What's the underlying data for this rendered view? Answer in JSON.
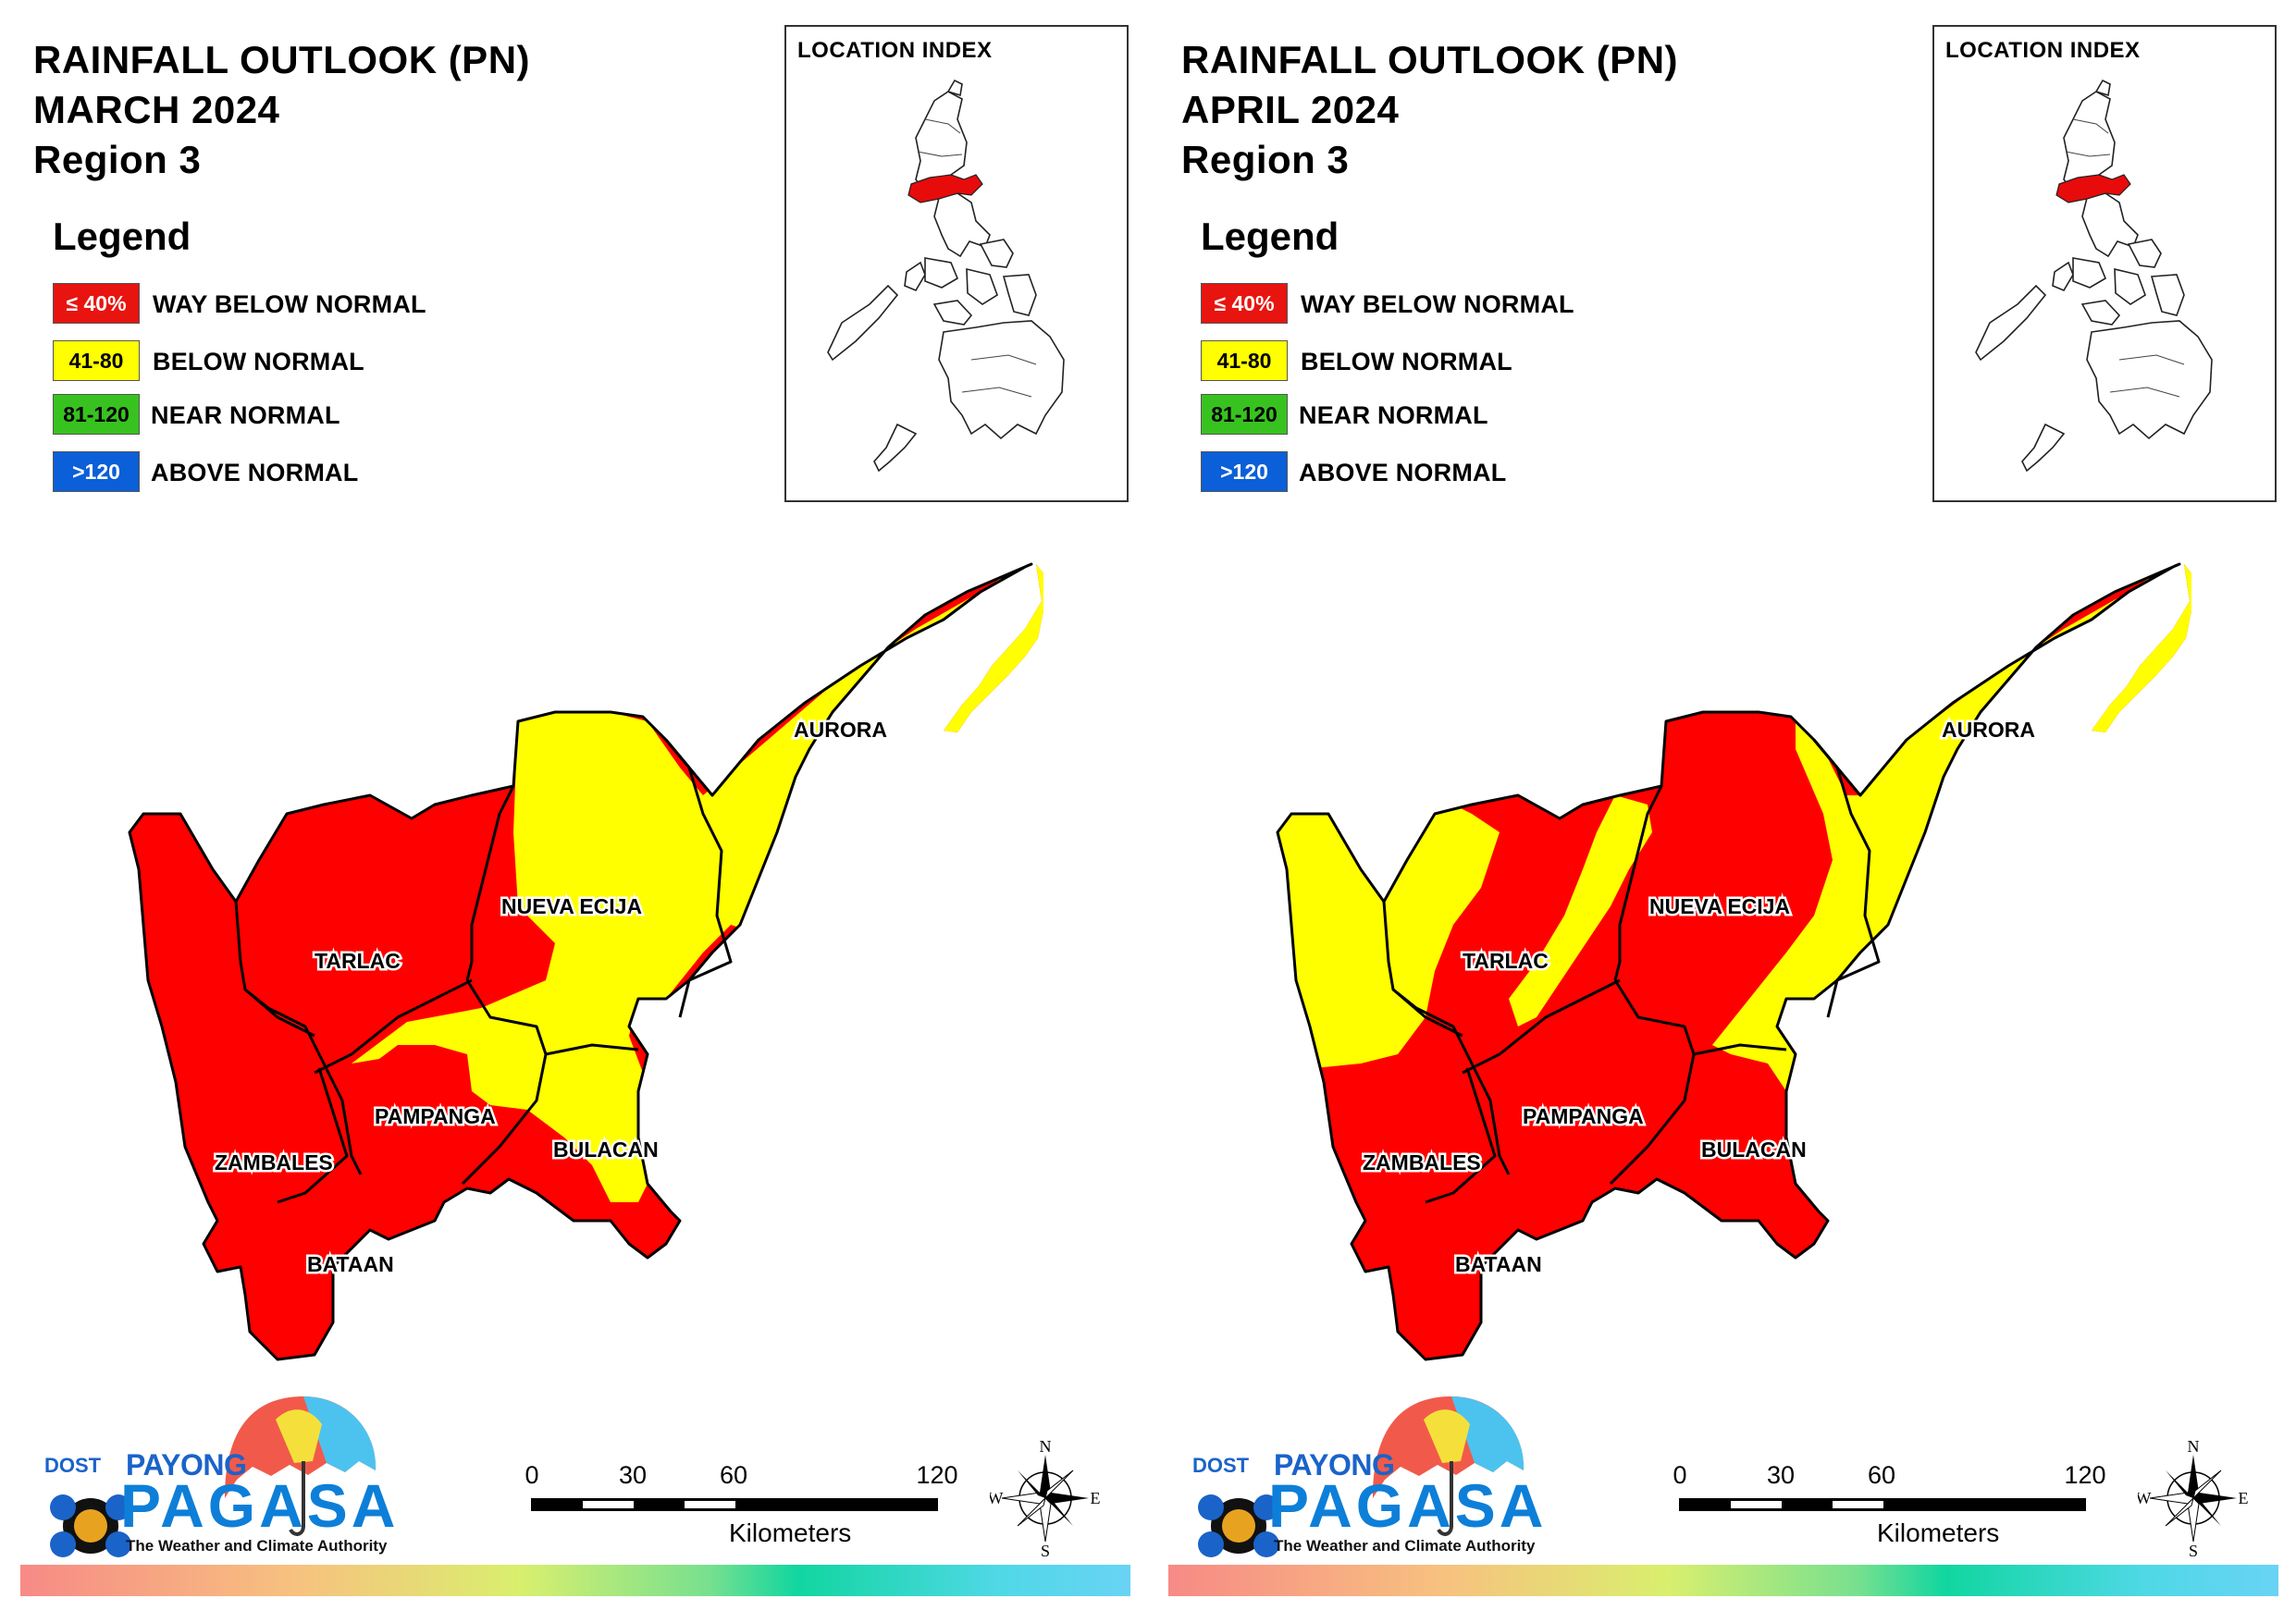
{
  "panels": [
    {
      "title_line1": "RAINFALL OUTLOOK (PN)",
      "title_line2": "MARCH 2024",
      "title_line3": "Region 3",
      "legend_title": "Legend",
      "inset_title": "LOCATION INDEX",
      "provinces": [
        {
          "name": "AURORA",
          "fill": "#ffff00"
        },
        {
          "name": "NUEVA ECIJA",
          "fill": "#ffff00"
        },
        {
          "name": "TARLAC",
          "fill": "#ff0000"
        },
        {
          "name": "PAMPANGA",
          "fill": "#ff0000"
        },
        {
          "name": "BULACAN",
          "fill": "#ff0000"
        },
        {
          "name": "ZAMBALES",
          "fill": "#ff0000"
        },
        {
          "name": "BATAAN",
          "fill": "#ff0000"
        }
      ]
    },
    {
      "title_line1": "RAINFALL OUTLOOK (PN)",
      "title_line2": "APRIL 2024",
      "title_line3": "Region 3",
      "legend_title": "Legend",
      "inset_title": "LOCATION INDEX",
      "provinces": [
        {
          "name": "AURORA",
          "fill": "#ffff00"
        },
        {
          "name": "NUEVA ECIJA",
          "fill": "#ff0000"
        },
        {
          "name": "TARLAC",
          "fill": "#ff0000"
        },
        {
          "name": "PAMPANGA",
          "fill": "#ff0000"
        },
        {
          "name": "BULACAN",
          "fill": "#ff0000"
        },
        {
          "name": "ZAMBALES",
          "fill": "#ff0000"
        },
        {
          "name": "BATAAN",
          "fill": "#ff0000"
        }
      ]
    }
  ],
  "legend": [
    {
      "range": "≤ 40%",
      "label": "WAY BELOW NORMAL",
      "color": "#e8140f",
      "text_color": "#ffffff"
    },
    {
      "range": "41-80",
      "label": "BELOW NORMAL",
      "color": "#ffff00",
      "text_color": "#000000"
    },
    {
      "range": "81-120",
      "label": "NEAR NORMAL",
      "color": "#38c21f",
      "text_color": "#000000"
    },
    {
      "range": ">120",
      "label": "ABOVE NORMAL",
      "color": "#0b5fd8",
      "text_color": "#ffffff"
    }
  ],
  "scale": {
    "ticks": [
      "0",
      "30",
      "60",
      "120"
    ],
    "unit": "Kilometers"
  },
  "compass": {
    "n": "N",
    "e": "E",
    "s": "S",
    "w": "W"
  },
  "logo": {
    "dost": "DOST",
    "payong": "PAYONG",
    "pagasa": "PAGASA",
    "tagline": "The Weather and Climate Authority"
  },
  "colors": {
    "red": "#ff0000",
    "yellow": "#ffff00",
    "green": "#36a10a",
    "boundary": "#000000"
  }
}
